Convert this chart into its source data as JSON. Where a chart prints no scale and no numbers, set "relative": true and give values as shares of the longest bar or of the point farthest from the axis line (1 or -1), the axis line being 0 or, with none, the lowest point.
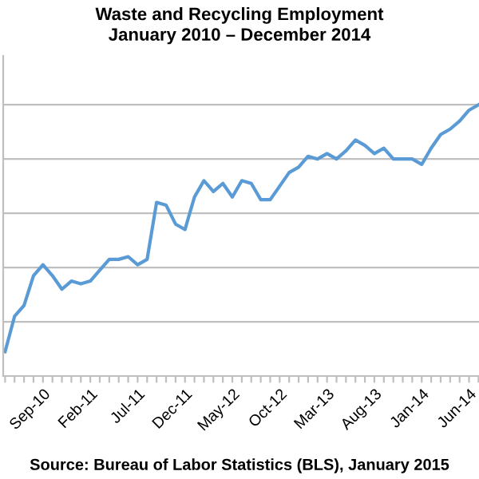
{
  "chart_data": {
    "type": "line",
    "title": "Waste and Recycling Employment\nJanuary 2010 – December 2014",
    "relative": true,
    "grid": "y",
    "categories": [
      null,
      null,
      null,
      null,
      "Sep-10",
      null,
      null,
      null,
      null,
      "Feb-11",
      null,
      null,
      null,
      null,
      "Jul-11",
      null,
      null,
      null,
      null,
      "Dec-11",
      null,
      null,
      null,
      null,
      "May-12",
      null,
      null,
      null,
      null,
      "Oct-12",
      null,
      null,
      null,
      null,
      "Mar-13",
      null,
      null,
      null,
      null,
      "Aug-13",
      null,
      null,
      null,
      null,
      "Jan-14",
      null,
      null,
      null,
      null,
      "Jun-14",
      null
    ],
    "series": [
      {
        "color": "#5b9bd5",
        "values": [
          0.09,
          0.22,
          0.26,
          0.37,
          0.41,
          0.37,
          0.32,
          0.35,
          0.34,
          0.35,
          0.39,
          0.43,
          0.43,
          0.44,
          0.41,
          0.43,
          0.64,
          0.63,
          0.56,
          0.54,
          0.66,
          0.72,
          0.68,
          0.71,
          0.66,
          0.72,
          0.71,
          0.65,
          0.65,
          0.7,
          0.75,
          0.77,
          0.81,
          0.8,
          0.82,
          0.8,
          0.83,
          0.87,
          0.85,
          0.82,
          0.84,
          0.8,
          0.8,
          0.8,
          0.78,
          0.84,
          0.89,
          0.91,
          0.94,
          0.98,
          1
        ]
      }
    ],
    "annotations": [
      "Source: Bureau of Labor Statistics (BLS), January 2015"
    ]
  }
}
